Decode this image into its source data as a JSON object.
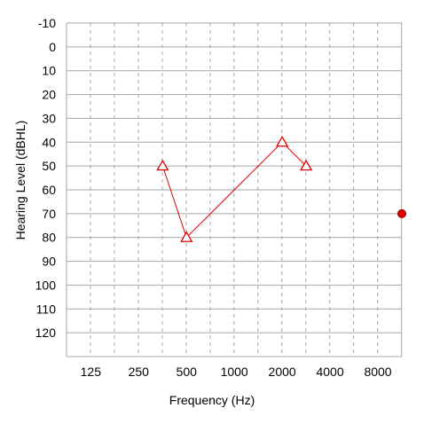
{
  "chart_data": {
    "type": "line",
    "xlabel": "Frequency (Hz)",
    "ylabel": "Hearing Level (dBHL)",
    "x_scale": "log2",
    "y_inverted": true,
    "x_tick_labels": [
      "125",
      "250",
      "500",
      "1000",
      "2000",
      "4000",
      "8000"
    ],
    "x_tick_values": [
      125,
      250,
      500,
      1000,
      2000,
      4000,
      8000
    ],
    "y_tick_labels": [
      "-10",
      "0",
      "10",
      "20",
      "30",
      "40",
      "50",
      "60",
      "70",
      "80",
      "90",
      "100",
      "110",
      "120"
    ],
    "y_tick_values": [
      -10,
      0,
      10,
      20,
      30,
      40,
      50,
      60,
      70,
      80,
      90,
      100,
      110,
      120
    ],
    "xlim": [
      88,
      11314
    ],
    "ylim": [
      -10,
      130
    ],
    "grid": true,
    "series": [
      {
        "marker": "triangle",
        "color": "#e00000",
        "connected": true,
        "points": [
          {
            "x": 354,
            "y": 50
          },
          {
            "x": 500,
            "y": 80
          },
          {
            "x": 2000,
            "y": 40
          },
          {
            "x": 2828,
            "y": 50
          }
        ]
      },
      {
        "marker": "circle",
        "color": "#e00000",
        "connected": false,
        "points": [
          {
            "x": 11314,
            "y": 70
          }
        ]
      }
    ]
  }
}
